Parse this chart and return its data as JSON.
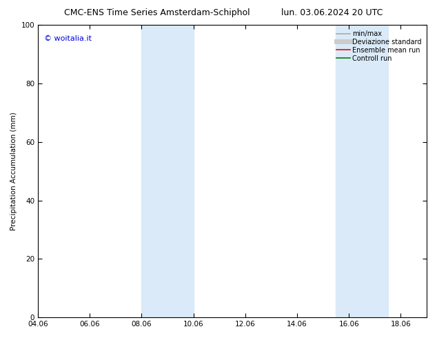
{
  "title_left": "CMC-ENS Time Series Amsterdam-Schiphol",
  "title_right": "lun. 03.06.2024 20 UTC",
  "ylabel": "Precipitation Accumulation (mm)",
  "watermark": "© woitalia.it",
  "watermark_color": "#0000dd",
  "xlim_left": 4.06,
  "xlim_right": 19.06,
  "ylim_bottom": 0,
  "ylim_top": 100,
  "xtick_labels": [
    "04.06",
    "06.06",
    "08.06",
    "10.06",
    "12.06",
    "14.06",
    "16.06",
    "18.06"
  ],
  "xtick_positions": [
    4.06,
    6.06,
    8.06,
    10.06,
    12.06,
    14.06,
    16.06,
    18.06
  ],
  "ytick_positions": [
    0,
    20,
    40,
    60,
    80,
    100
  ],
  "shaded_bands": [
    {
      "x_start": 8.06,
      "x_end": 10.06
    },
    {
      "x_start": 15.56,
      "x_end": 17.56
    }
  ],
  "shade_color": "#daeaf8",
  "shade_alpha": 1.0,
  "legend_entries": [
    {
      "label": "min/max",
      "color": "#aaaaaa",
      "lw": 1.2,
      "style": "solid"
    },
    {
      "label": "Deviazione standard",
      "color": "#cccccc",
      "lw": 5,
      "style": "solid"
    },
    {
      "label": "Ensemble mean run",
      "color": "#ff0000",
      "lw": 1.2,
      "style": "solid"
    },
    {
      "label": "Controll run",
      "color": "#008000",
      "lw": 1.2,
      "style": "solid"
    }
  ],
  "bg_color": "#ffffff",
  "font_size_title": 9,
  "font_size_axis": 7.5,
  "font_size_legend": 7,
  "font_size_watermark": 8
}
